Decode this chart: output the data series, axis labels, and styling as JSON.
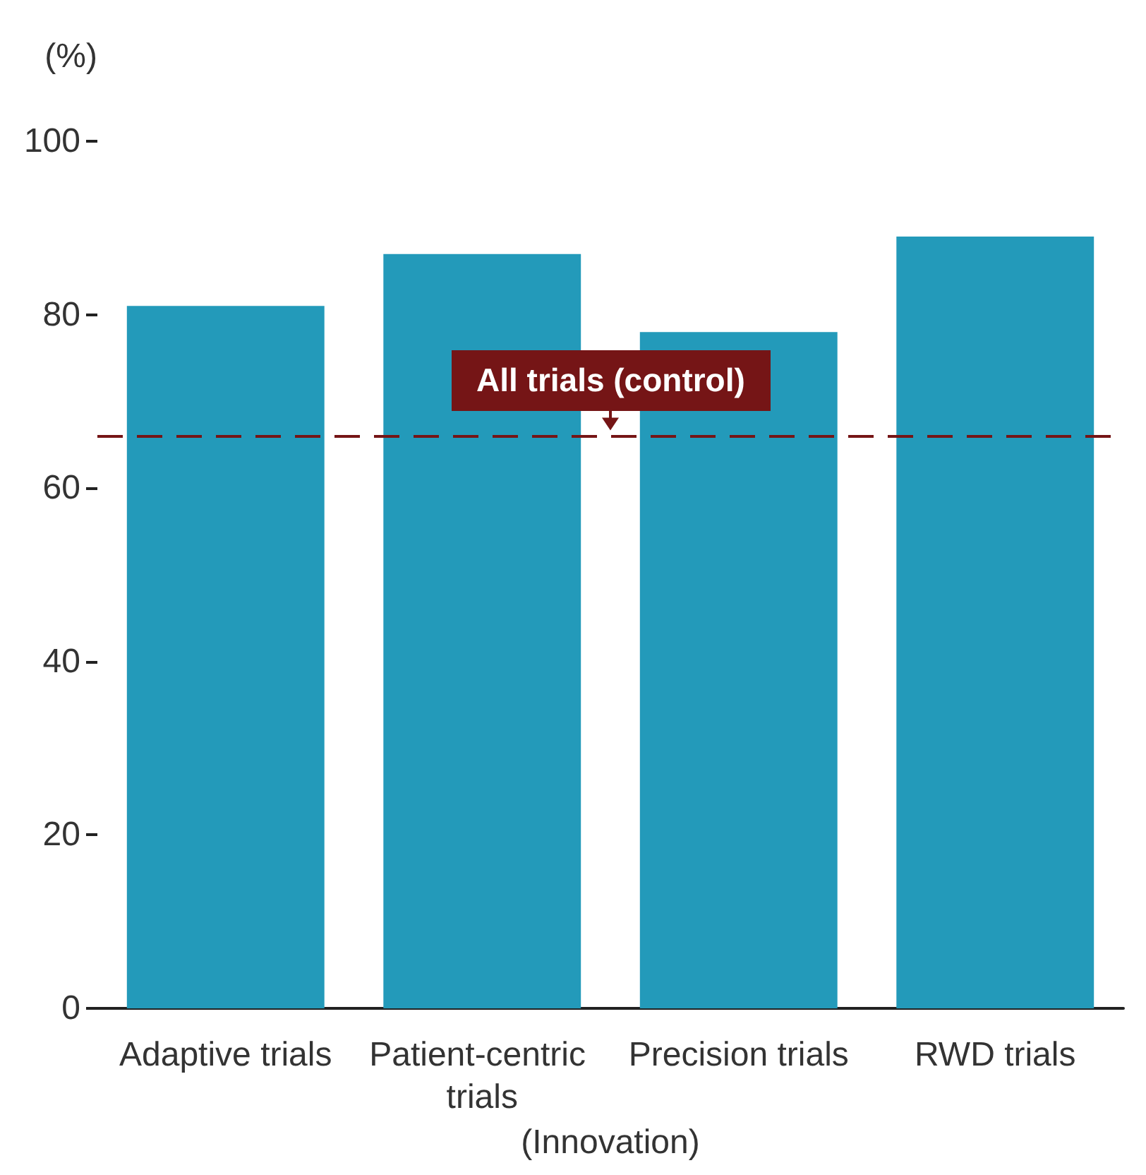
{
  "chart_data": {
    "type": "bar",
    "xlabel": "(Innovation)",
    "ylabel": "(%)",
    "categories": [
      "Adaptive trials",
      "Patient-centric trials",
      "Precision trials",
      "RWD trials"
    ],
    "values": [
      81,
      87,
      78,
      89
    ],
    "color": "#239aba",
    "ylim": [
      0,
      100
    ],
    "yticks": [
      0,
      20,
      40,
      60,
      80,
      100
    ],
    "grid": false,
    "ref_lines": [
      {
        "axis": "y",
        "value": 66,
        "label": "All trials (control)",
        "color": "#751516",
        "line_style": "dashed"
      }
    ]
  }
}
